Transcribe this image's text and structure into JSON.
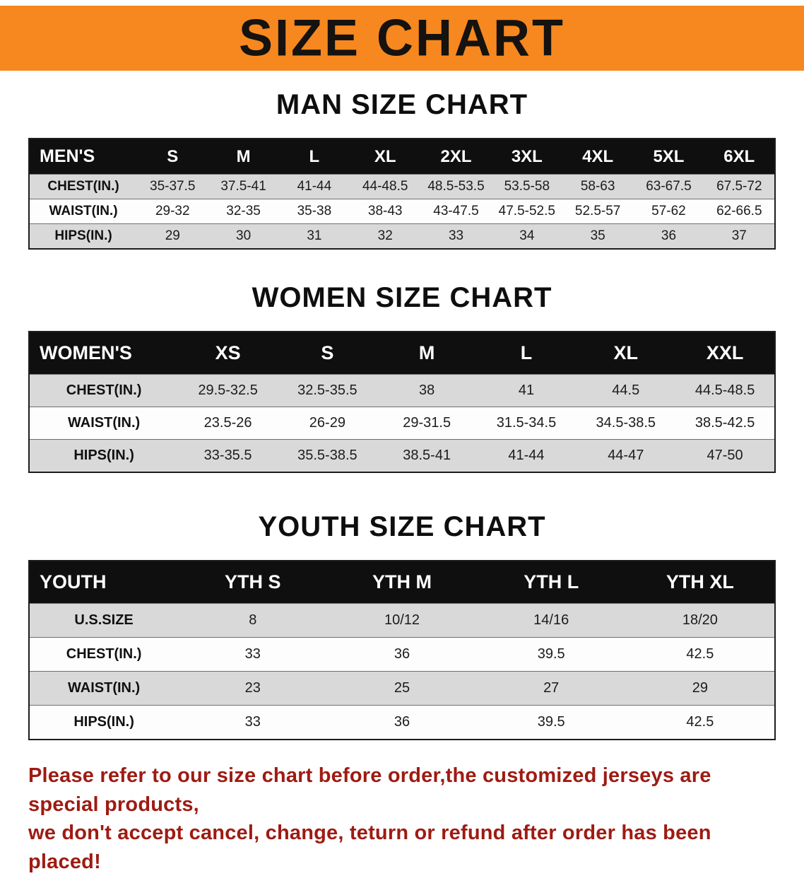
{
  "banner": {
    "title": "SIZE CHART",
    "bg_color": "#f6881f",
    "text_color": "#151210"
  },
  "sections": [
    {
      "heading": "MAN SIZE CHART",
      "table": {
        "header": [
          "MEN'S",
          "S",
          "M",
          "L",
          "XL",
          "2XL",
          "3XL",
          "4XL",
          "5XL",
          "6XL"
        ],
        "rows": [
          [
            "CHEST(IN.)",
            "35-37.5",
            "37.5-41",
            "41-44",
            "44-48.5",
            "48.5-53.5",
            "53.5-58",
            "58-63",
            "63-67.5",
            "67.5-72"
          ],
          [
            "WAIST(IN.)",
            "29-32",
            "32-35",
            "35-38",
            "38-43",
            "43-47.5",
            "47.5-52.5",
            "52.5-57",
            "57-62",
            "62-66.5"
          ],
          [
            "HIPS(IN.)",
            "29",
            "30",
            "31",
            "32",
            "33",
            "34",
            "35",
            "36",
            "37"
          ]
        ]
      }
    },
    {
      "heading": "WOMEN SIZE CHART",
      "table": {
        "header": [
          "WOMEN'S",
          "XS",
          "S",
          "M",
          "L",
          "XL",
          "XXL"
        ],
        "rows": [
          [
            "CHEST(IN.)",
            "29.5-32.5",
            "32.5-35.5",
            "38",
            "41",
            "44.5",
            "44.5-48.5"
          ],
          [
            "WAIST(IN.)",
            "23.5-26",
            "26-29",
            "29-31.5",
            "31.5-34.5",
            "34.5-38.5",
            "38.5-42.5"
          ],
          [
            "HIPS(IN.)",
            "33-35.5",
            "35.5-38.5",
            "38.5-41",
            "41-44",
            "44-47",
            "47-50"
          ]
        ]
      }
    },
    {
      "heading": "YOUTH SIZE CHART",
      "table": {
        "header": [
          "YOUTH",
          "YTH S",
          "YTH M",
          "YTH L",
          "YTH XL"
        ],
        "rows": [
          [
            "U.S.SIZE",
            "8",
            "10/12",
            "14/16",
            "18/20"
          ],
          [
            "CHEST(IN.)",
            "33",
            "36",
            "39.5",
            "42.5"
          ],
          [
            "WAIST(IN.)",
            "23",
            "25",
            "27",
            "29"
          ],
          [
            "HIPS(IN.)",
            "33",
            "36",
            "39.5",
            "42.5"
          ]
        ]
      }
    }
  ],
  "disclaimer": {
    "line1": "Please refer to our size chart before order,the customized jerseys are special products,",
    "line2": "we don't accept cancel, change, teturn or refund after order has been placed!",
    "text_color": "#9e1b12"
  }
}
